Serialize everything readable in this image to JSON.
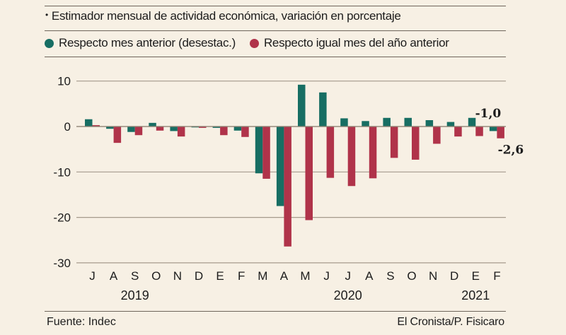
{
  "header": {
    "title": "Estimador mensual de actividad económica, variación en porcentaje",
    "bullet": "•"
  },
  "legend": [
    {
      "label": "Respecto mes anterior (desestac.)",
      "color": "#176e63"
    },
    {
      "label": "Respecto igual mes del año anterior",
      "color": "#b0334a"
    }
  ],
  "footer": {
    "source": "Fuente: Indec",
    "credit": "El Cronista/P. Fisicaro"
  },
  "chart_data": {
    "type": "bar",
    "title": "Estimador mensual de actividad económica, variación en porcentaje",
    "xlabel": "",
    "ylabel": "",
    "ylim": [
      -30,
      10
    ],
    "yticks": [
      10,
      0,
      -10,
      -20,
      -30
    ],
    "ytick_labels": [
      "10",
      "0",
      "-10",
      "-20",
      "-30"
    ],
    "grid": true,
    "legend_position": "top",
    "categories": [
      "J",
      "A",
      "S",
      "O",
      "N",
      "D",
      "E",
      "F",
      "M",
      "A",
      "M",
      "J",
      "J",
      "A",
      "S",
      "O",
      "N",
      "D",
      "E",
      "F"
    ],
    "years": [
      {
        "label": "2019",
        "center_category_index": 2
      },
      {
        "label": "2020",
        "center_category_index": 12
      },
      {
        "label": "2021",
        "center_category_index": 18
      }
    ],
    "series": [
      {
        "name": "Respecto mes anterior (desestac.)",
        "color": "#176e63",
        "values": [
          1.6,
          -0.5,
          -1.2,
          0.8,
          -1.0,
          -0.2,
          -0.3,
          -0.9,
          -10.3,
          -17.5,
          9.2,
          7.5,
          1.8,
          1.2,
          1.9,
          1.9,
          1.4,
          1.0,
          1.9,
          -1.0
        ]
      },
      {
        "name": "Respecto igual mes del año anterior",
        "color": "#b0334a",
        "values": [
          0.3,
          -3.6,
          -1.9,
          -0.9,
          -2.2,
          -0.3,
          -1.9,
          -2.3,
          -11.5,
          -26.4,
          -20.6,
          -11.3,
          -13.1,
          -11.4,
          -6.9,
          -7.3,
          -3.8,
          -2.2,
          -2.1,
          -2.6
        ]
      }
    ],
    "annotations": [
      {
        "text": "-1,0",
        "series": 0,
        "category_index": 19
      },
      {
        "text": "-2,6",
        "series": 1,
        "category_index": 19
      }
    ]
  }
}
